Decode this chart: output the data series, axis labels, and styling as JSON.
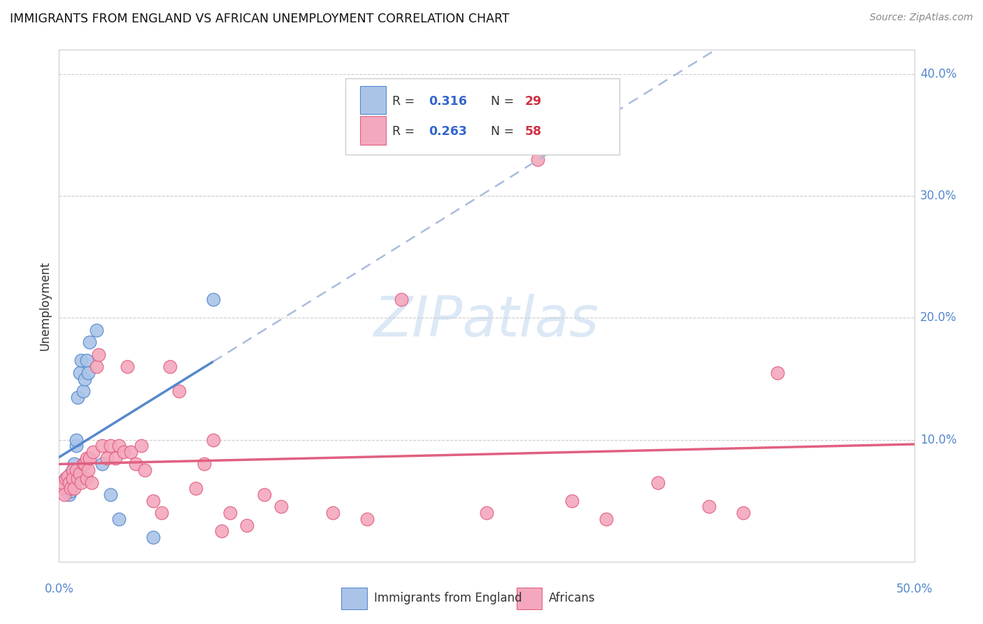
{
  "title": "IMMIGRANTS FROM ENGLAND VS AFRICAN UNEMPLOYMENT CORRELATION CHART",
  "source": "Source: ZipAtlas.com",
  "ylabel": "Unemployment",
  "xlim": [
    0.0,
    0.5
  ],
  "ylim": [
    0.0,
    0.42
  ],
  "ytick_values": [
    0.1,
    0.2,
    0.3,
    0.4
  ],
  "ytick_labels": [
    "10.0%",
    "20.0%",
    "30.0%",
    "40.0%"
  ],
  "color_england": "#aac4e8",
  "color_africans": "#f4a8be",
  "line_england": "#5588cc",
  "line_africans": "#e06080",
  "dashed_color": "#aabbdd",
  "watermark_color": "#dce8f5",
  "england_x": [
    0.001,
    0.002,
    0.003,
    0.004,
    0.005,
    0.006,
    0.006,
    0.007,
    0.007,
    0.008,
    0.008,
    0.009,
    0.009,
    0.01,
    0.01,
    0.011,
    0.012,
    0.013,
    0.014,
    0.015,
    0.016,
    0.017,
    0.018,
    0.022,
    0.025,
    0.03,
    0.035,
    0.055,
    0.09
  ],
  "england_y": [
    0.065,
    0.06,
    0.062,
    0.068,
    0.058,
    0.07,
    0.055,
    0.072,
    0.058,
    0.068,
    0.075,
    0.065,
    0.08,
    0.095,
    0.1,
    0.135,
    0.155,
    0.165,
    0.14,
    0.15,
    0.165,
    0.155,
    0.18,
    0.19,
    0.08,
    0.055,
    0.035,
    0.02,
    0.215
  ],
  "africans_x": [
    0.001,
    0.002,
    0.003,
    0.004,
    0.005,
    0.006,
    0.007,
    0.008,
    0.008,
    0.009,
    0.01,
    0.011,
    0.012,
    0.013,
    0.014,
    0.015,
    0.016,
    0.016,
    0.017,
    0.018,
    0.019,
    0.02,
    0.022,
    0.023,
    0.025,
    0.028,
    0.03,
    0.033,
    0.035,
    0.038,
    0.04,
    0.042,
    0.045,
    0.048,
    0.05,
    0.055,
    0.06,
    0.065,
    0.07,
    0.08,
    0.085,
    0.09,
    0.095,
    0.1,
    0.11,
    0.12,
    0.13,
    0.16,
    0.18,
    0.2,
    0.25,
    0.28,
    0.3,
    0.32,
    0.35,
    0.38,
    0.4,
    0.42
  ],
  "africans_y": [
    0.06,
    0.065,
    0.055,
    0.068,
    0.07,
    0.065,
    0.06,
    0.075,
    0.068,
    0.06,
    0.075,
    0.068,
    0.072,
    0.065,
    0.08,
    0.08,
    0.085,
    0.068,
    0.075,
    0.085,
    0.065,
    0.09,
    0.16,
    0.17,
    0.095,
    0.085,
    0.095,
    0.085,
    0.095,
    0.09,
    0.16,
    0.09,
    0.08,
    0.095,
    0.075,
    0.05,
    0.04,
    0.16,
    0.14,
    0.06,
    0.08,
    0.1,
    0.025,
    0.04,
    0.03,
    0.055,
    0.045,
    0.04,
    0.035,
    0.215,
    0.04,
    0.33,
    0.05,
    0.035,
    0.065,
    0.045,
    0.04,
    0.155
  ],
  "legend_entries": [
    {
      "label": "R = ",
      "r_val": "0.316",
      "n_label": "N = ",
      "n_val": "29"
    },
    {
      "label": "R = ",
      "r_val": "0.263",
      "n_label": "N = ",
      "n_val": "58"
    }
  ]
}
